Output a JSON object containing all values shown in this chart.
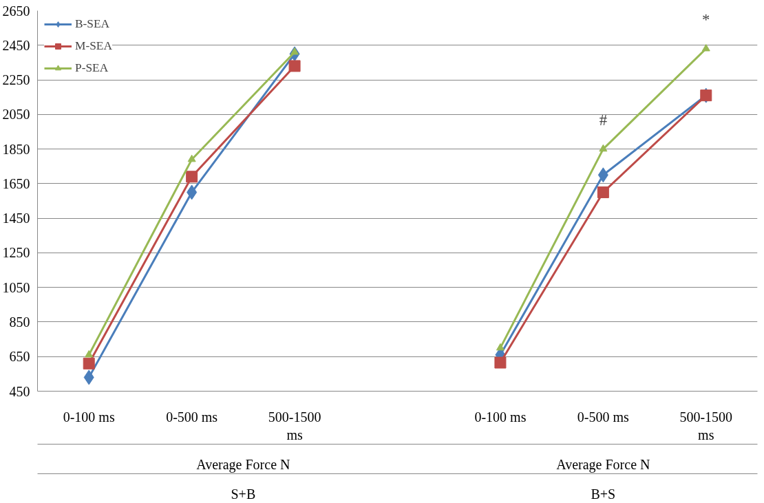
{
  "chart_data": {
    "type": "line",
    "categories": [
      "0-100 ms",
      "0-500 ms",
      "500-1500\nms",
      null,
      "0-100 ms",
      "0-500 ms",
      "500-1500\nms"
    ],
    "series": [
      {
        "name": "B-SEA",
        "color": "#4a7ebb",
        "marker": "diamond",
        "values": [
          530,
          1600,
          2400,
          null,
          660,
          1700,
          2160
        ]
      },
      {
        "name": "M-SEA",
        "color": "#be4b48",
        "marker": "square",
        "values": [
          610,
          1690,
          2330,
          null,
          615,
          1600,
          2160
        ]
      },
      {
        "name": "P-SEA",
        "color": "#98b954",
        "marker": "triangle",
        "values": [
          660,
          1790,
          2410,
          null,
          700,
          1850,
          2430
        ]
      }
    ],
    "ylim": [
      450,
      2650
    ],
    "yticks": [
      450,
      650,
      850,
      1050,
      1250,
      1450,
      1650,
      1850,
      2050,
      2250,
      2450,
      2650
    ],
    "grid": "y",
    "legend": "top left",
    "annotations": [
      "Average Force N",
      "Average Force N",
      "S+B",
      "B+S",
      "#",
      "*"
    ]
  }
}
